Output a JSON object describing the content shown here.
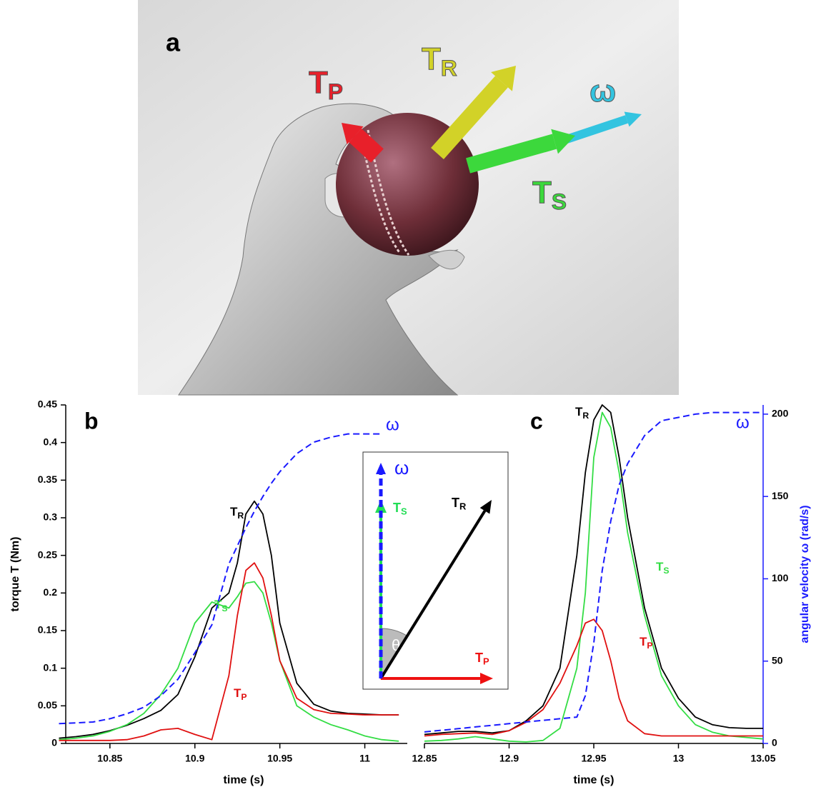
{
  "photo": {
    "panel_label": "a",
    "arrows": [
      {
        "name": "T",
        "sub": "P",
        "color": "#e8202a"
      },
      {
        "name": "T",
        "sub": "R",
        "color": "#d2d228"
      },
      {
        "name": "ω",
        "color": "#33c4e0"
      },
      {
        "name": "T",
        "sub": "S",
        "color": "#3cd83c"
      }
    ]
  },
  "inset": {
    "vectors": [
      {
        "name": "ω",
        "color": "#1a1aff"
      },
      {
        "name": "T",
        "sub": "S",
        "color": "#22dd55"
      },
      {
        "name": "T",
        "sub": "R",
        "color": "#000000"
      },
      {
        "name": "T",
        "sub": "P",
        "color": "#ee1111"
      }
    ],
    "angle_label": "θ"
  },
  "chart_data": [
    {
      "type": "line",
      "panel_label": "b",
      "xlabel": "time (s)",
      "ylabel": "torque T (Nm)",
      "x": [
        10.82,
        10.83,
        10.84,
        10.85,
        10.86,
        10.87,
        10.88,
        10.89,
        10.9,
        10.91,
        10.92,
        10.925,
        10.93,
        10.935,
        10.94,
        10.945,
        10.95,
        10.96,
        10.97,
        10.98,
        10.99,
        11,
        11.01,
        11.02
      ],
      "xlim": [
        10.824,
        11.025
      ],
      "xticks": [
        10.85,
        10.9,
        10.95,
        11
      ],
      "ylim": [
        0,
        0.45
      ],
      "yticks": [
        0,
        0.05,
        0.1,
        0.15,
        0.2,
        0.25,
        0.3,
        0.35,
        0.4,
        0.45
      ],
      "y2lim": [
        0,
        205.6
      ],
      "series": [
        {
          "name": "T",
          "sub": "R",
          "color": "#000000",
          "values": [
            0.007,
            0.009,
            0.012,
            0.017,
            0.024,
            0.033,
            0.044,
            0.065,
            0.115,
            0.18,
            0.2,
            0.24,
            0.305,
            0.322,
            0.305,
            0.25,
            0.16,
            0.08,
            0.052,
            0.043,
            0.04,
            0.039,
            0.038,
            0.038
          ]
        },
        {
          "name": "T",
          "sub": "S",
          "color": "#33dd44",
          "values": [
            0.005,
            0.007,
            0.01,
            0.016,
            0.025,
            0.04,
            0.065,
            0.1,
            0.16,
            0.188,
            0.18,
            0.195,
            0.213,
            0.215,
            0.2,
            0.16,
            0.11,
            0.05,
            0.035,
            0.025,
            0.018,
            0.01,
            0.005,
            0.003
          ]
        },
        {
          "name": "T",
          "sub": "P",
          "color": "#e01010",
          "values": [
            0.004,
            0.004,
            0.004,
            0.004,
            0.005,
            0.01,
            0.018,
            0.02,
            0.012,
            0.005,
            0.09,
            0.17,
            0.23,
            0.24,
            0.22,
            0.17,
            0.11,
            0.06,
            0.045,
            0.04,
            0.039,
            0.038,
            0.038,
            0.038
          ]
        },
        {
          "name": "ω",
          "color": "#1a1aff",
          "line_style": "dashed",
          "axis": "y2",
          "values": [
            12,
            12.5,
            13,
            15,
            18,
            22,
            29,
            39,
            55,
            72,
            109,
            120,
            131,
            141,
            150,
            158,
            165,
            176,
            183,
            186,
            188,
            188,
            188,
            null
          ]
        }
      ]
    },
    {
      "type": "line",
      "panel_label": "c",
      "xlabel": "time (s)",
      "y2label": "angular velocity ω (rad/s)",
      "x": [
        12.85,
        12.86,
        12.87,
        12.88,
        12.89,
        12.9,
        12.91,
        12.92,
        12.93,
        12.94,
        12.945,
        12.95,
        12.955,
        12.96,
        12.965,
        12.97,
        12.98,
        12.99,
        13,
        13.01,
        13.02,
        13.03,
        13.04,
        13.05
      ],
      "xlim": [
        12.85,
        13.05
      ],
      "xticks": [
        12.85,
        12.9,
        12.95,
        13,
        13.05
      ],
      "ylim": [
        0,
        0.45
      ],
      "y2lim": [
        0,
        205.6
      ],
      "y2ticks": [
        0,
        50,
        100,
        150,
        200
      ],
      "series": [
        {
          "name": "T",
          "sub": "R",
          "color": "#000000",
          "values": [
            0.012,
            0.014,
            0.016,
            0.016,
            0.014,
            0.017,
            0.03,
            0.05,
            0.1,
            0.25,
            0.36,
            0.43,
            0.45,
            0.44,
            0.38,
            0.3,
            0.18,
            0.1,
            0.06,
            0.035,
            0.025,
            0.021,
            0.02,
            0.02
          ]
        },
        {
          "name": "T",
          "sub": "S",
          "color": "#33dd44",
          "values": [
            0.003,
            0.004,
            0.006,
            0.009,
            0.006,
            0.003,
            0.002,
            0.004,
            0.02,
            0.1,
            0.2,
            0.38,
            0.44,
            0.42,
            0.36,
            0.28,
            0.17,
            0.09,
            0.05,
            0.025,
            0.015,
            0.01,
            0.008,
            0.006
          ]
        },
        {
          "name": "T",
          "sub": "P",
          "color": "#e01010",
          "values": [
            0.01,
            0.012,
            0.013,
            0.014,
            0.012,
            0.017,
            0.028,
            0.045,
            0.08,
            0.13,
            0.16,
            0.165,
            0.15,
            0.11,
            0.06,
            0.03,
            0.013,
            0.01,
            0.01,
            0.01,
            0.01,
            0.01,
            0.01,
            0.01
          ]
        },
        {
          "name": "ω",
          "color": "#1a1aff",
          "line_style": "dashed",
          "axis": "y2",
          "values": [
            7,
            8,
            9,
            10,
            11,
            12,
            13,
            14,
            15,
            16,
            29,
            61,
            105,
            135,
            157,
            170,
            187,
            196,
            198,
            200,
            201,
            201,
            201,
            201
          ]
        }
      ]
    }
  ]
}
